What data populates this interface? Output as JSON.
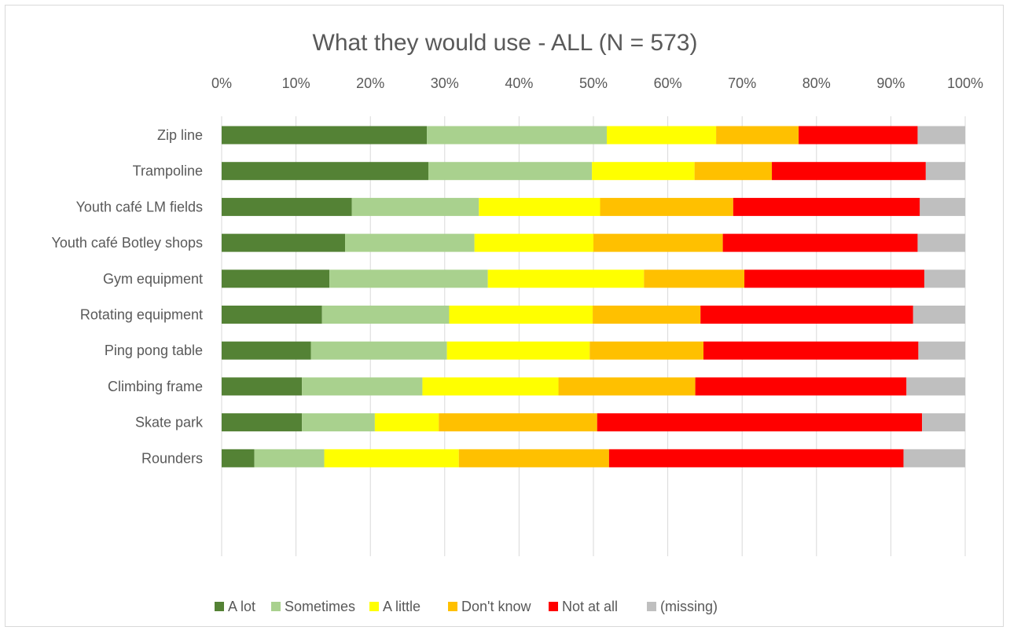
{
  "chart_data": {
    "type": "bar",
    "orientation": "horizontal",
    "stacked": true,
    "percent": true,
    "title": "What they would use - ALL (N = 573)",
    "xlim": [
      0,
      100
    ],
    "x_ticks": [
      "0%",
      "10%",
      "20%",
      "30%",
      "40%",
      "50%",
      "60%",
      "70%",
      "80%",
      "90%",
      "100%"
    ],
    "grid": true,
    "legend_position": "bottom",
    "categories": [
      "Zip line",
      "Trampoline",
      "Youth café LM fields",
      "Youth café Botley shops",
      "Gym equipment",
      "Rotating equipment",
      "Ping pong table",
      "Climbing frame",
      "Skate park",
      "Rounders"
    ],
    "series": [
      {
        "name": "A lot",
        "color": "#548235",
        "values": [
          27.6,
          27.8,
          17.5,
          16.6,
          14.5,
          13.5,
          12.0,
          10.8,
          10.8,
          4.4
        ]
      },
      {
        "name": "Sometimes",
        "color": "#a9d18e",
        "values": [
          24.2,
          22.0,
          17.1,
          17.4,
          21.3,
          17.1,
          18.3,
          16.2,
          9.8,
          9.4
        ]
      },
      {
        "name": "A little",
        "color": "#ffff00",
        "values": [
          14.7,
          13.8,
          16.3,
          16.0,
          21.0,
          19.3,
          19.2,
          18.3,
          8.6,
          18.1
        ]
      },
      {
        "name": "Don't know",
        "color": "#ffc000",
        "values": [
          11.1,
          10.4,
          17.9,
          17.4,
          13.5,
          14.5,
          15.3,
          18.4,
          21.3,
          20.2
        ]
      },
      {
        "name": "Not at all",
        "color": "#ff0000",
        "values": [
          16.0,
          20.7,
          25.1,
          26.2,
          24.2,
          28.6,
          28.9,
          28.4,
          43.7,
          39.6
        ]
      },
      {
        "name": "(missing)",
        "color": "#bfbfbf",
        "values": [
          6.4,
          5.3,
          6.1,
          6.4,
          5.5,
          7.0,
          6.3,
          7.9,
          5.8,
          8.3
        ]
      }
    ]
  }
}
